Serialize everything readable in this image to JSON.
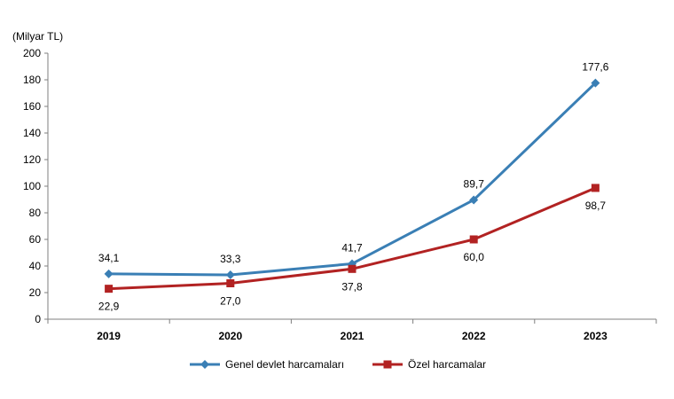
{
  "chart_data": {
    "type": "line",
    "unit_label": "(Milyar TL)",
    "categories": [
      "2019",
      "2020",
      "2021",
      "2022",
      "2023"
    ],
    "ylim": [
      0,
      200
    ],
    "yticks": [
      0,
      20,
      40,
      60,
      80,
      100,
      120,
      140,
      160,
      180,
      200
    ],
    "grid": false,
    "legend_position": "bottom",
    "series": [
      {
        "name": "Genel devlet harcamaları",
        "values": [
          34.1,
          33.3,
          41.7,
          89.7,
          177.6
        ],
        "labels": [
          "34,1",
          "33,3",
          "41,7",
          "89,7",
          "177,6"
        ],
        "label_side": "above",
        "color": "#3a7fb5",
        "marker": "diamond"
      },
      {
        "name": "Özel harcamalar",
        "values": [
          22.9,
          27.0,
          37.8,
          60.0,
          98.7
        ],
        "labels": [
          "22,9",
          "27,0",
          "37,8",
          "60,0",
          "98,7"
        ],
        "label_side": "below",
        "color": "#b22222",
        "marker": "square"
      }
    ]
  }
}
